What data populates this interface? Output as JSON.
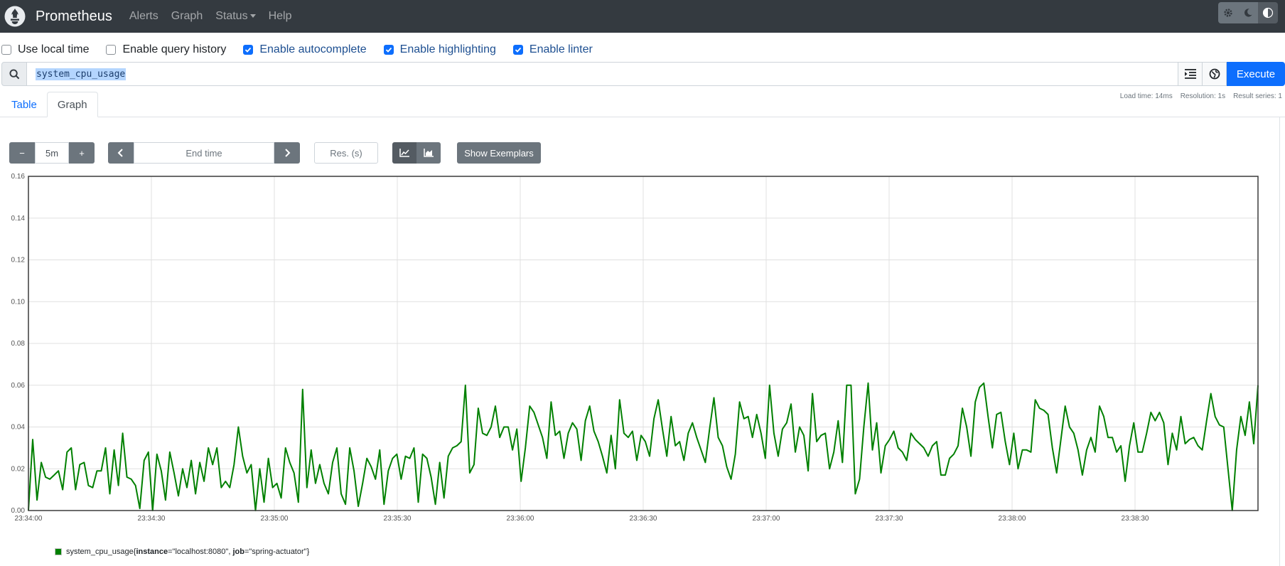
{
  "navbar": {
    "brand": "Prometheus",
    "links": [
      {
        "label": "Alerts"
      },
      {
        "label": "Graph"
      },
      {
        "label": "Status",
        "dropdown": true
      },
      {
        "label": "Help"
      }
    ],
    "theme_buttons": [
      "gear-icon",
      "moon-icon",
      "contrast-icon"
    ]
  },
  "options": [
    {
      "label": "Use local time",
      "checked": false
    },
    {
      "label": "Enable query history",
      "checked": false
    },
    {
      "label": "Enable autocomplete",
      "checked": true
    },
    {
      "label": "Enable highlighting",
      "checked": true
    },
    {
      "label": "Enable linter",
      "checked": true
    }
  ],
  "query": {
    "expression": "system_cpu_usage",
    "execute_label": "Execute"
  },
  "tabs": [
    {
      "label": "Table",
      "active": false
    },
    {
      "label": "Graph",
      "active": true
    }
  ],
  "stats": {
    "load_time": "Load time: 14ms",
    "resolution": "Resolution: 1s",
    "result_series": "Result series: 1"
  },
  "controls": {
    "minus": "−",
    "range": "5m",
    "plus": "+",
    "end_time_placeholder": "End time",
    "res_placeholder": "Res. (s)",
    "show_exemplars": "Show Exemplars"
  },
  "legend": {
    "metric": "system_cpu_usage",
    "instance_key": "instance",
    "instance_value": "\"localhost:8080\"",
    "job_key": "job",
    "job_value": "\"spring-actuator\"",
    "color": "#008000"
  },
  "chart_data": {
    "type": "line",
    "ylim": [
      0,
      0.16
    ],
    "y_ticks": [
      "0.00",
      "0.02",
      "0.04",
      "0.06",
      "0.08",
      "0.10",
      "0.12",
      "0.14",
      "0.16"
    ],
    "x_ticks": [
      "23:34:00",
      "23:34:30",
      "23:35:00",
      "23:35:30",
      "23:36:00",
      "23:36:30",
      "23:37:00",
      "23:37:30",
      "23:38:00",
      "23:38:30"
    ],
    "x_start": "23:34:00",
    "step_seconds": 1,
    "grid": true,
    "series": [
      {
        "name": "system_cpu_usage{instance=\"localhost:8080\", job=\"spring-actuator\"}",
        "color": "#008000",
        "values": [
          0.0,
          0.034,
          0.005,
          0.023,
          0.016,
          0.015,
          0.017,
          0.019,
          0.01,
          0.028,
          0.03,
          0.01,
          0.022,
          0.023,
          0.012,
          0.011,
          0.019,
          0.019,
          0.03,
          0.008,
          0.029,
          0.012,
          0.037,
          0.016,
          0.015,
          0.012,
          0.001,
          0.024,
          0.028,
          0.0,
          0.027,
          0.019,
          0.005,
          0.028,
          0.018,
          0.007,
          0.02,
          0.011,
          0.024,
          0.008,
          0.023,
          0.014,
          0.03,
          0.022,
          0.03,
          0.011,
          0.014,
          0.011,
          0.022,
          0.04,
          0.026,
          0.018,
          0.022,
          0.0,
          0.02,
          0.004,
          0.025,
          0.011,
          0.013,
          0.006,
          0.03,
          0.023,
          0.018,
          0.004,
          0.058,
          0.011,
          0.029,
          0.013,
          0.022,
          0.013,
          0.008,
          0.023,
          0.03,
          0.008,
          0.003,
          0.03,
          0.019,
          0.002,
          0.013,
          0.025,
          0.021,
          0.015,
          0.029,
          0.003,
          0.019,
          0.025,
          0.027,
          0.015,
          0.026,
          0.025,
          0.03,
          0.004,
          0.027,
          0.025,
          0.016,
          0.003,
          0.023,
          0.006,
          0.026,
          0.03,
          0.031,
          0.033,
          0.06,
          0.018,
          0.022,
          0.049,
          0.037,
          0.036,
          0.04,
          0.05,
          0.035,
          0.04,
          0.04,
          0.029,
          0.039,
          0.014,
          0.03,
          0.05,
          0.047,
          0.041,
          0.035,
          0.025,
          0.052,
          0.036,
          0.038,
          0.025,
          0.037,
          0.042,
          0.039,
          0.024,
          0.043,
          0.05,
          0.038,
          0.033,
          0.026,
          0.018,
          0.036,
          0.02,
          0.053,
          0.037,
          0.035,
          0.038,
          0.024,
          0.036,
          0.033,
          0.026,
          0.044,
          0.053,
          0.039,
          0.026,
          0.045,
          0.031,
          0.033,
          0.024,
          0.037,
          0.042,
          0.035,
          0.029,
          0.023,
          0.039,
          0.054,
          0.035,
          0.031,
          0.021,
          0.015,
          0.027,
          0.052,
          0.044,
          0.045,
          0.035,
          0.046,
          0.037,
          0.025,
          0.06,
          0.037,
          0.026,
          0.039,
          0.042,
          0.051,
          0.028,
          0.04,
          0.036,
          0.019,
          0.056,
          0.033,
          0.036,
          0.037,
          0.02,
          0.028,
          0.043,
          0.023,
          0.06,
          0.06,
          0.008,
          0.015,
          0.04,
          0.061,
          0.029,
          0.042,
          0.018,
          0.031,
          0.034,
          0.038,
          0.03,
          0.028,
          0.024,
          0.037,
          0.034,
          0.032,
          0.03,
          0.026,
          0.031,
          0.033,
          0.017,
          0.017,
          0.025,
          0.027,
          0.031,
          0.049,
          0.04,
          0.026,
          0.052,
          0.059,
          0.061,
          0.045,
          0.03,
          0.046,
          0.047,
          0.033,
          0.022,
          0.037,
          0.02,
          0.029,
          0.029,
          0.028,
          0.053,
          0.049,
          0.048,
          0.046,
          0.03,
          0.018,
          0.034,
          0.05,
          0.04,
          0.037,
          0.029,
          0.017,
          0.029,
          0.035,
          0.028,
          0.05,
          0.045,
          0.035,
          0.035,
          0.028,
          0.031,
          0.014,
          0.031,
          0.042,
          0.028,
          0.028,
          0.037,
          0.047,
          0.043,
          0.047,
          0.042,
          0.022,
          0.037,
          0.029,
          0.045,
          0.032,
          0.034,
          0.035,
          0.031,
          0.029,
          0.043,
          0.056,
          0.045,
          0.041,
          0.04,
          0.02,
          0.0,
          0.029,
          0.045,
          0.036,
          0.052,
          0.032,
          0.06
        ]
      }
    ]
  }
}
